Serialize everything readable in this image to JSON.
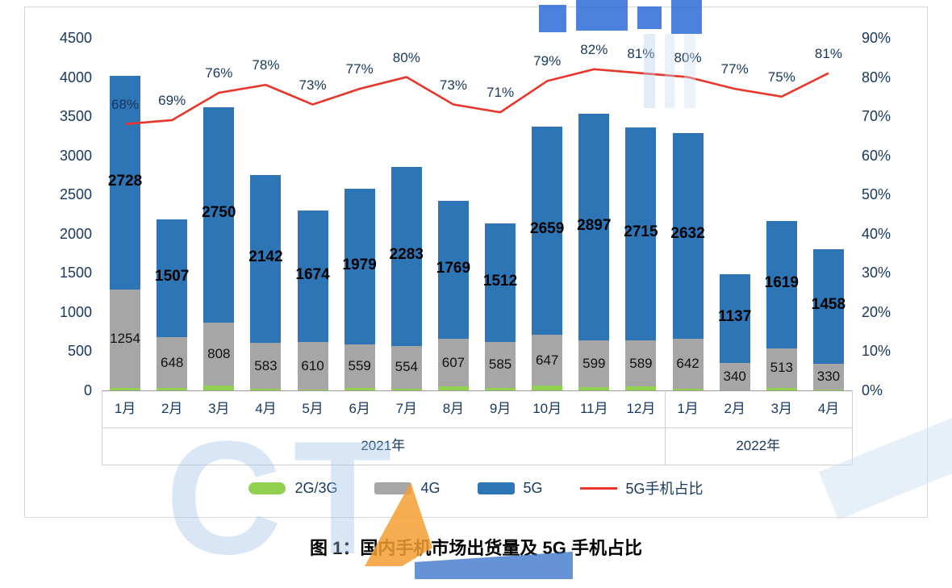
{
  "title": "图 1：国内手机市场出货量及 5G 手机占比",
  "watermark": {
    "letters": "CT"
  },
  "legend": [
    {
      "id": "2g3g",
      "label": "2G/3G",
      "type": "bar",
      "color": "#92d050"
    },
    {
      "id": "4g",
      "label": "4G",
      "type": "bar",
      "color": "#a6a6a6"
    },
    {
      "id": "5g",
      "label": "5G",
      "type": "bar",
      "color": "#2e75b6"
    },
    {
      "id": "5g-share",
      "label": "5G手机占比",
      "type": "line",
      "color": "#e8362b"
    }
  ],
  "chart_data": {
    "type": "bar",
    "subtype": "stacked-columns-with-line",
    "title": "图 1：国内手机市场出货量及 5G 手机占比",
    "categories": [
      "1月",
      "2月",
      "3月",
      "4月",
      "5月",
      "6月",
      "7月",
      "8月",
      "9月",
      "10月",
      "11月",
      "12月",
      "1月",
      "2月",
      "3月",
      "4月"
    ],
    "year_groups": [
      {
        "label": "2021年",
        "span": 12
      },
      {
        "label": "2022年",
        "span": 4
      }
    ],
    "series": [
      {
        "name": "2G/3G",
        "color": "#92d050",
        "labeled": false,
        "values": [
          30,
          29,
          60,
          21,
          9,
          32,
          17,
          47,
          33,
          60,
          37,
          48,
          16,
          5,
          27,
          12
        ]
      },
      {
        "name": "4G",
        "color": "#a6a6a6",
        "labeled": true,
        "values": [
          1254,
          648,
          808,
          583,
          610,
          559,
          554,
          607,
          585,
          647,
          599,
          589,
          642,
          340,
          513,
          330
        ]
      },
      {
        "name": "5G",
        "color": "#2e75b6",
        "labeled": true,
        "values": [
          2728,
          1507,
          2750,
          2142,
          1674,
          1979,
          2283,
          1769,
          1512,
          2659,
          2897,
          2715,
          2632,
          1137,
          1619,
          1458
        ]
      }
    ],
    "line_series": {
      "name": "5G手机占比",
      "color": "#e8362b",
      "unit": "%",
      "values": [
        68,
        69,
        76,
        78,
        73,
        77,
        80,
        73,
        71,
        79,
        82,
        81,
        80,
        77,
        75,
        81
      ]
    },
    "ylim_left": [
      0,
      4500
    ],
    "left_tick_step": 500,
    "ylim_right": [
      0,
      90
    ],
    "right_tick_step": 10,
    "left_ticks": [
      "4500",
      "4000",
      "3500",
      "3000",
      "2500",
      "2000",
      "1500",
      "1000",
      "500",
      "0"
    ],
    "right_ticks": [
      "90%",
      "80%",
      "70%",
      "60%",
      "50%",
      "40%",
      "30%",
      "20%",
      "10%",
      "0%"
    ],
    "grid": false,
    "legend_position": "bottom"
  }
}
